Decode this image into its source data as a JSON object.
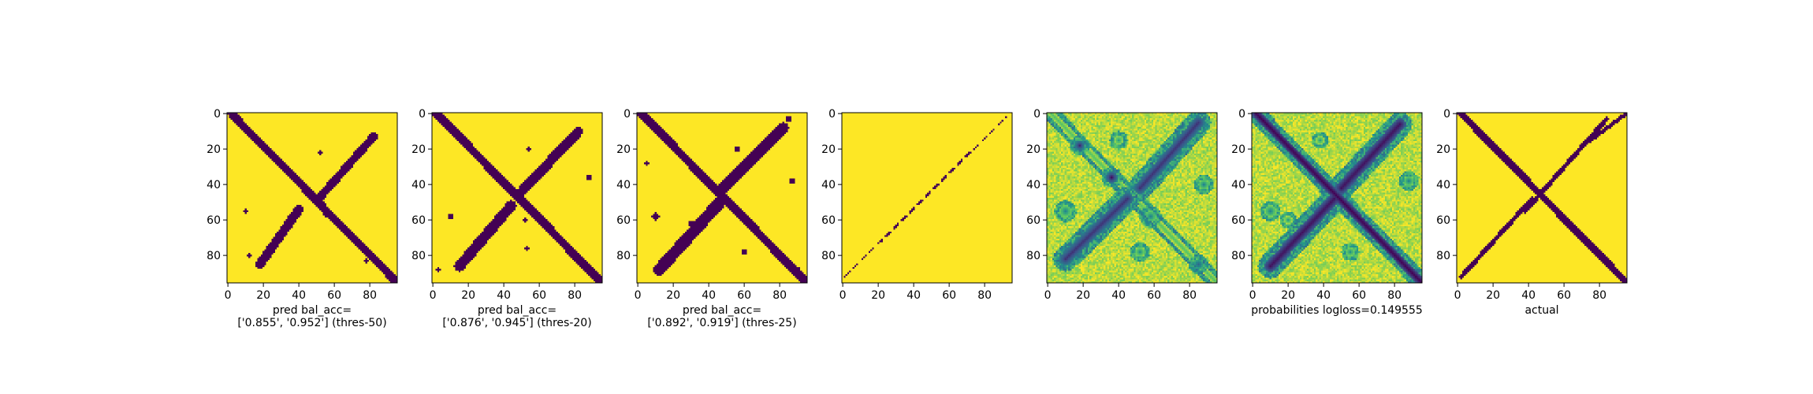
{
  "colors": {
    "low": "#440154",
    "mid_dark": "#31688e",
    "mid": "#1fa187",
    "mid_light": "#a0da39",
    "high": "#fde725",
    "axis": "#000000"
  },
  "chart_data": [
    {
      "type": "heatmap",
      "label_lines": [
        "pred bal_acc=",
        "['0.855', '0.952'] (thres-50)"
      ],
      "size": 96,
      "xlim": [
        0,
        95
      ],
      "ylim": [
        95,
        0
      ],
      "x_ticks": [
        0,
        20,
        40,
        60,
        80
      ],
      "y_ticks": [
        0,
        20,
        40,
        60,
        80
      ],
      "pattern": "binary",
      "features": [
        {
          "kind": "diagonal",
          "from": [
            2,
            0
          ],
          "to": [
            95,
            95
          ],
          "width": 2.2,
          "value": 0
        },
        {
          "kind": "band",
          "from": [
            52,
            47
          ],
          "to": [
            82,
            13
          ],
          "width": 2.3,
          "value": 0
        },
        {
          "kind": "band",
          "from": [
            18,
            85
          ],
          "to": [
            40,
            54
          ],
          "width": 2.6,
          "value": 0
        },
        {
          "kind": "spot",
          "at": [
            10,
            55
          ],
          "r": 1.2,
          "value": 0
        },
        {
          "kind": "spot",
          "at": [
            55,
            57
          ],
          "r": 1.0,
          "value": 0
        },
        {
          "kind": "spot",
          "at": [
            52,
            22
          ],
          "r": 1.0,
          "value": 0
        },
        {
          "kind": "spot",
          "at": [
            78,
            83
          ],
          "r": 1.0,
          "value": 0
        },
        {
          "kind": "spot",
          "at": [
            12,
            80
          ],
          "r": 1.2,
          "value": 0
        }
      ]
    },
    {
      "type": "heatmap",
      "label_lines": [
        "pred bal_acc=",
        "['0.876', '0.945'] (thres-20)"
      ],
      "size": 96,
      "xlim": [
        0,
        95
      ],
      "ylim": [
        95,
        0
      ],
      "x_ticks": [
        0,
        20,
        40,
        60,
        80
      ],
      "y_ticks": [
        0,
        20,
        40,
        60,
        80
      ],
      "pattern": "binary",
      "features": [
        {
          "kind": "diagonal",
          "from": [
            2,
            0
          ],
          "to": [
            95,
            95
          ],
          "width": 2.4,
          "value": 0
        },
        {
          "kind": "band",
          "from": [
            50,
            44
          ],
          "to": [
            82,
            10
          ],
          "width": 2.8,
          "value": 0
        },
        {
          "kind": "band",
          "from": [
            15,
            86
          ],
          "to": [
            44,
            52
          ],
          "width": 3.0,
          "value": 0
        },
        {
          "kind": "spot",
          "at": [
            10,
            58
          ],
          "r": 1.5,
          "value": 0
        },
        {
          "kind": "spot",
          "at": [
            88,
            36
          ],
          "r": 1.5,
          "value": 0
        },
        {
          "kind": "spot",
          "at": [
            52,
            60
          ],
          "r": 1.2,
          "value": 0
        },
        {
          "kind": "spot",
          "at": [
            54,
            20
          ],
          "r": 1.3,
          "value": 0
        },
        {
          "kind": "spot",
          "at": [
            3,
            88
          ],
          "r": 1.4,
          "value": 0
        },
        {
          "kind": "spot",
          "at": [
            53,
            76
          ],
          "r": 1.2,
          "value": 0
        }
      ]
    },
    {
      "type": "heatmap",
      "label_lines": [
        "pred bal_acc=",
        "['0.892', '0.919'] (thres-25)"
      ],
      "size": 96,
      "xlim": [
        0,
        95
      ],
      "ylim": [
        95,
        0
      ],
      "x_ticks": [
        0,
        20,
        40,
        60,
        80
      ],
      "y_ticks": [
        0,
        20,
        40,
        60,
        80
      ],
      "pattern": "binary",
      "features": [
        {
          "kind": "diagonal",
          "from": [
            2,
            0
          ],
          "to": [
            95,
            95
          ],
          "width": 2.4,
          "value": 0
        },
        {
          "kind": "band",
          "from": [
            48,
            42
          ],
          "to": [
            82,
            8
          ],
          "width": 3.0,
          "value": 0
        },
        {
          "kind": "band",
          "from": [
            12,
            88
          ],
          "to": [
            48,
            48
          ],
          "width": 3.4,
          "value": 0
        },
        {
          "kind": "spot",
          "at": [
            37,
            36
          ],
          "r": 2.4,
          "value": 0
        },
        {
          "kind": "spot",
          "at": [
            60,
            58
          ],
          "r": 2.0,
          "value": 0
        },
        {
          "kind": "spot",
          "at": [
            10,
            58
          ],
          "r": 2.0,
          "value": 0
        },
        {
          "kind": "spot",
          "at": [
            56,
            20
          ],
          "r": 1.6,
          "value": 0
        },
        {
          "kind": "spot",
          "at": [
            87,
            38
          ],
          "r": 1.6,
          "value": 0
        },
        {
          "kind": "spot",
          "at": [
            60,
            78
          ],
          "r": 1.8,
          "value": 0
        },
        {
          "kind": "spot",
          "at": [
            90,
            88
          ],
          "r": 1.5,
          "value": 0
        },
        {
          "kind": "spot",
          "at": [
            85,
            3
          ],
          "r": 1.5,
          "value": 0
        },
        {
          "kind": "spot",
          "at": [
            5,
            28
          ],
          "r": 1.4,
          "value": 0
        },
        {
          "kind": "spot",
          "at": [
            30,
            62
          ],
          "r": 1.6,
          "value": 0
        }
      ]
    },
    {
      "type": "heatmap",
      "label_lines": [],
      "size": 96,
      "xlim": [
        0,
        95
      ],
      "ylim": [
        95,
        0
      ],
      "x_ticks": [
        0,
        20,
        40,
        60,
        80
      ],
      "y_ticks": [
        0,
        20,
        40,
        60,
        80
      ],
      "pattern": "binary",
      "features": [
        {
          "kind": "dashed",
          "from": [
            1,
            92
          ],
          "to": [
            92,
            2
          ],
          "width": 0.55,
          "value": 0
        }
      ]
    },
    {
      "type": "heatmap",
      "label_lines": [],
      "size": 96,
      "xlim": [
        0,
        95
      ],
      "ylim": [
        95,
        0
      ],
      "x_ticks": [
        0,
        20,
        40,
        60,
        80
      ],
      "y_ticks": [
        0,
        20,
        40,
        60,
        80
      ],
      "pattern": "probability",
      "features": [
        {
          "kind": "band",
          "from": [
            52,
            42
          ],
          "to": [
            85,
            5
          ],
          "width": 3.2,
          "value": 0.15
        },
        {
          "kind": "band",
          "from": [
            10,
            82
          ],
          "to": [
            45,
            48
          ],
          "width": 3.2,
          "value": 0.15
        },
        {
          "kind": "diagonal",
          "from": [
            2,
            0
          ],
          "to": [
            95,
            95
          ],
          "width": 2.0,
          "value": 0.7
        },
        {
          "kind": "spot",
          "at": [
            18,
            18
          ],
          "r": 3.0,
          "value": 0.12
        },
        {
          "kind": "spot",
          "at": [
            36,
            36
          ],
          "r": 3.2,
          "value": 0.05
        },
        {
          "kind": "spot",
          "at": [
            58,
            58
          ],
          "r": 3.5,
          "value": 0.45
        },
        {
          "kind": "spot",
          "at": [
            85,
            85
          ],
          "r": 3.0,
          "value": 0.3
        },
        {
          "kind": "spot",
          "at": [
            10,
            55
          ],
          "r": 3.5,
          "value": 0.45
        },
        {
          "kind": "spot",
          "at": [
            88,
            40
          ],
          "r": 3.0,
          "value": 0.45
        },
        {
          "kind": "spot",
          "at": [
            40,
            15
          ],
          "r": 2.8,
          "value": 0.55
        },
        {
          "kind": "spot",
          "at": [
            52,
            78
          ],
          "r": 3.0,
          "value": 0.5
        }
      ]
    },
    {
      "type": "heatmap",
      "label_lines": [
        "probabilities logloss=0.149555"
      ],
      "size": 96,
      "xlim": [
        0,
        95
      ],
      "ylim": [
        95,
        0
      ],
      "x_ticks": [
        0,
        20,
        40,
        60,
        80
      ],
      "y_ticks": [
        0,
        20,
        40,
        60,
        80
      ],
      "pattern": "probability",
      "features": [
        {
          "kind": "diagonal",
          "from": [
            2,
            0
          ],
          "to": [
            95,
            95
          ],
          "width": 2.3,
          "value": 0.0
        },
        {
          "kind": "band",
          "from": [
            50,
            42
          ],
          "to": [
            83,
            6
          ],
          "width": 3.2,
          "value": 0.05
        },
        {
          "kind": "band",
          "from": [
            10,
            86
          ],
          "to": [
            46,
            48
          ],
          "width": 3.2,
          "value": 0.05
        },
        {
          "kind": "spot",
          "at": [
            10,
            55
          ],
          "r": 3.2,
          "value": 0.45
        },
        {
          "kind": "spot",
          "at": [
            88,
            38
          ],
          "r": 3.0,
          "value": 0.45
        },
        {
          "kind": "spot",
          "at": [
            38,
            15
          ],
          "r": 2.6,
          "value": 0.55
        },
        {
          "kind": "spot",
          "at": [
            55,
            78
          ],
          "r": 2.8,
          "value": 0.5
        },
        {
          "kind": "spot",
          "at": [
            20,
            60
          ],
          "r": 2.5,
          "value": 0.55
        }
      ]
    },
    {
      "type": "heatmap",
      "label_lines": [
        "actual"
      ],
      "size": 96,
      "xlim": [
        0,
        95
      ],
      "ylim": [
        95,
        0
      ],
      "x_ticks": [
        0,
        20,
        40,
        60,
        80
      ],
      "y_ticks": [
        0,
        20,
        40,
        60,
        80
      ],
      "pattern": "binary",
      "features": [
        {
          "kind": "diagonal",
          "from": [
            2,
            0
          ],
          "to": [
            95,
            95
          ],
          "width": 2.0,
          "value": 0
        },
        {
          "kind": "band",
          "from": [
            38,
            55
          ],
          "to": [
            84,
            3
          ],
          "width": 1.3,
          "value": 0
        },
        {
          "kind": "band",
          "from": [
            2,
            92
          ],
          "to": [
            42,
            48
          ],
          "width": 1.3,
          "value": 0
        },
        {
          "kind": "band",
          "from": [
            75,
            15
          ],
          "to": [
            95,
            0
          ],
          "width": 1.0,
          "value": 0
        }
      ]
    }
  ]
}
